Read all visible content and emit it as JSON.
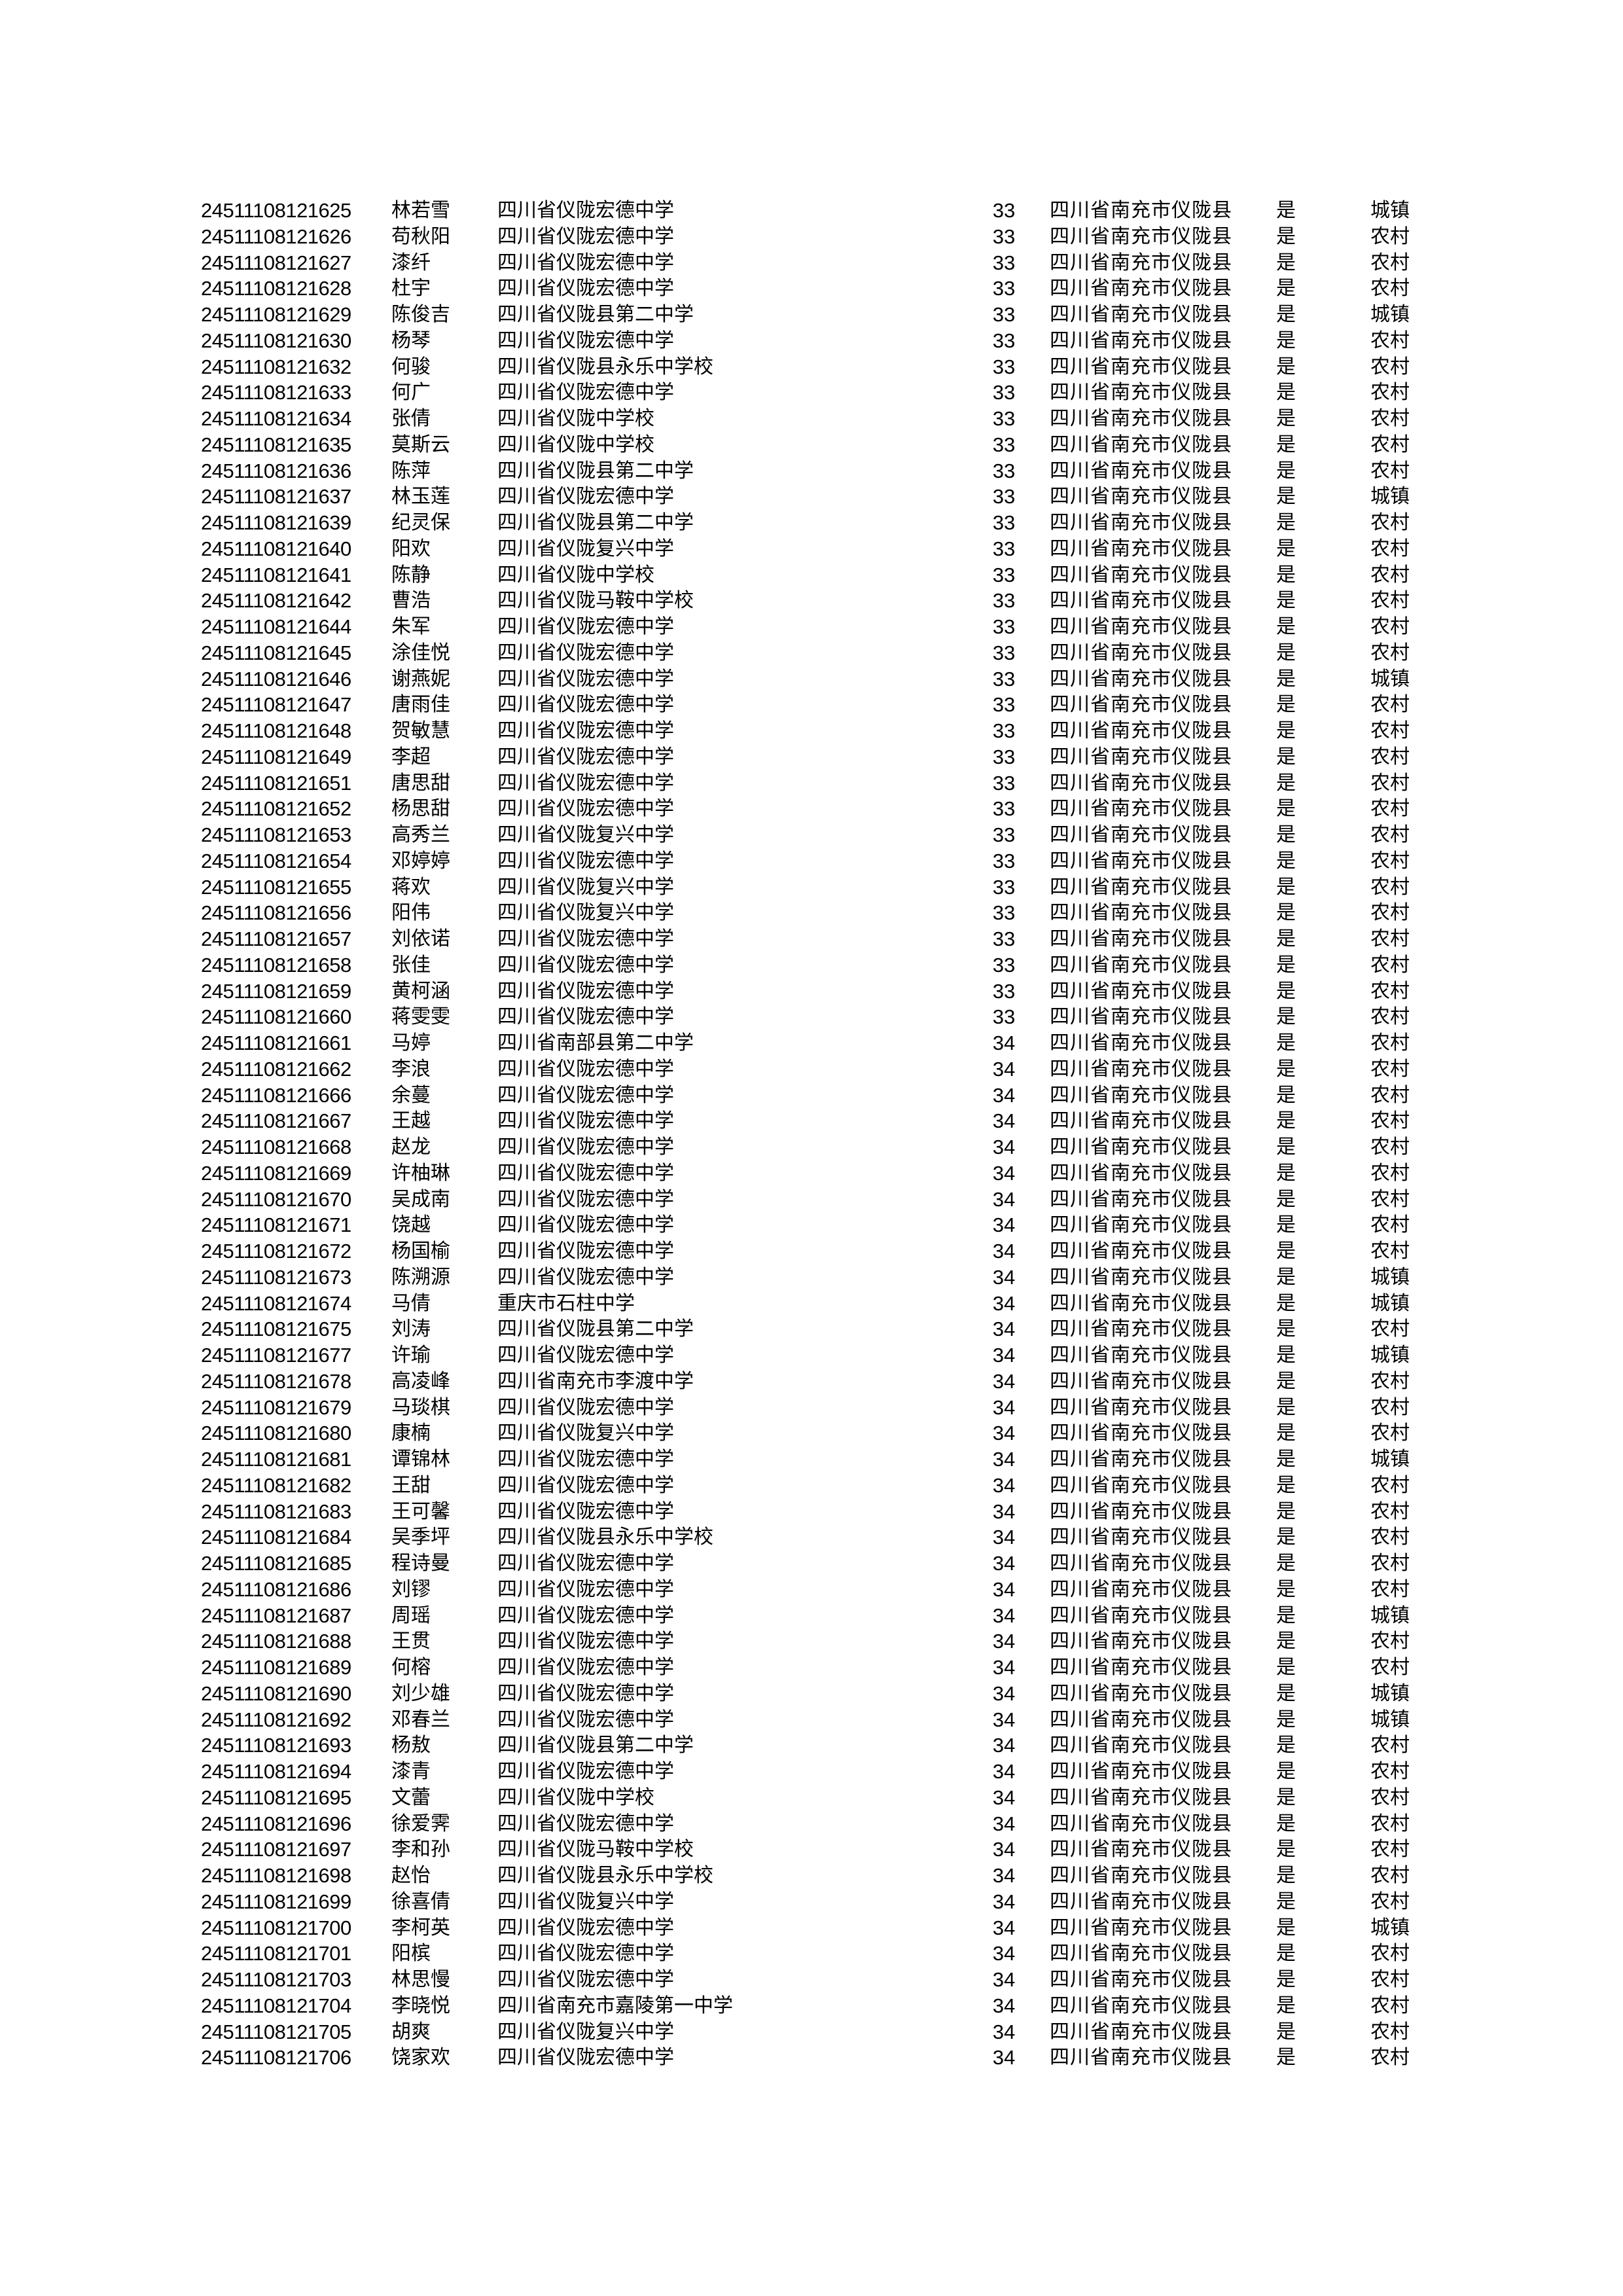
{
  "rows": [
    [
      "24511108121625",
      "林若雪",
      "四川省仪陇宏德中学",
      "33",
      "四川省南充市仪陇县",
      "是",
      "城镇"
    ],
    [
      "24511108121626",
      "苟秋阳",
      "四川省仪陇宏德中学",
      "33",
      "四川省南充市仪陇县",
      "是",
      "农村"
    ],
    [
      "24511108121627",
      "漆纤",
      "四川省仪陇宏德中学",
      "33",
      "四川省南充市仪陇县",
      "是",
      "农村"
    ],
    [
      "24511108121628",
      "杜宇",
      "四川省仪陇宏德中学",
      "33",
      "四川省南充市仪陇县",
      "是",
      "农村"
    ],
    [
      "24511108121629",
      "陈俊吉",
      "四川省仪陇县第二中学",
      "33",
      "四川省南充市仪陇县",
      "是",
      "城镇"
    ],
    [
      "24511108121630",
      "杨琴",
      "四川省仪陇宏德中学",
      "33",
      "四川省南充市仪陇县",
      "是",
      "农村"
    ],
    [
      "24511108121632",
      "何骏",
      "四川省仪陇县永乐中学校",
      "33",
      "四川省南充市仪陇县",
      "是",
      "农村"
    ],
    [
      "24511108121633",
      "何广",
      "四川省仪陇宏德中学",
      "33",
      "四川省南充市仪陇县",
      "是",
      "农村"
    ],
    [
      "24511108121634",
      "张倩",
      "四川省仪陇中学校",
      "33",
      "四川省南充市仪陇县",
      "是",
      "农村"
    ],
    [
      "24511108121635",
      "莫斯云",
      "四川省仪陇中学校",
      "33",
      "四川省南充市仪陇县",
      "是",
      "农村"
    ],
    [
      "24511108121636",
      "陈萍",
      "四川省仪陇县第二中学",
      "33",
      "四川省南充市仪陇县",
      "是",
      "农村"
    ],
    [
      "24511108121637",
      "林玉莲",
      "四川省仪陇宏德中学",
      "33",
      "四川省南充市仪陇县",
      "是",
      "城镇"
    ],
    [
      "24511108121639",
      "纪灵保",
      "四川省仪陇县第二中学",
      "33",
      "四川省南充市仪陇县",
      "是",
      "农村"
    ],
    [
      "24511108121640",
      "阳欢",
      "四川省仪陇复兴中学",
      "33",
      "四川省南充市仪陇县",
      "是",
      "农村"
    ],
    [
      "24511108121641",
      "陈静",
      "四川省仪陇中学校",
      "33",
      "四川省南充市仪陇县",
      "是",
      "农村"
    ],
    [
      "24511108121642",
      "曹浩",
      "四川省仪陇马鞍中学校",
      "33",
      "四川省南充市仪陇县",
      "是",
      "农村"
    ],
    [
      "24511108121644",
      "朱军",
      "四川省仪陇宏德中学",
      "33",
      "四川省南充市仪陇县",
      "是",
      "农村"
    ],
    [
      "24511108121645",
      "涂佳悦",
      "四川省仪陇宏德中学",
      "33",
      "四川省南充市仪陇县",
      "是",
      "农村"
    ],
    [
      "24511108121646",
      "谢燕妮",
      "四川省仪陇宏德中学",
      "33",
      "四川省南充市仪陇县",
      "是",
      "城镇"
    ],
    [
      "24511108121647",
      "唐雨佳",
      "四川省仪陇宏德中学",
      "33",
      "四川省南充市仪陇县",
      "是",
      "农村"
    ],
    [
      "24511108121648",
      "贺敏慧",
      "四川省仪陇宏德中学",
      "33",
      "四川省南充市仪陇县",
      "是",
      "农村"
    ],
    [
      "24511108121649",
      "李超",
      "四川省仪陇宏德中学",
      "33",
      "四川省南充市仪陇县",
      "是",
      "农村"
    ],
    [
      "24511108121651",
      "唐思甜",
      "四川省仪陇宏德中学",
      "33",
      "四川省南充市仪陇县",
      "是",
      "农村"
    ],
    [
      "24511108121652",
      "杨思甜",
      "四川省仪陇宏德中学",
      "33",
      "四川省南充市仪陇县",
      "是",
      "农村"
    ],
    [
      "24511108121653",
      "高秀兰",
      "四川省仪陇复兴中学",
      "33",
      "四川省南充市仪陇县",
      "是",
      "农村"
    ],
    [
      "24511108121654",
      "邓婷婷",
      "四川省仪陇宏德中学",
      "33",
      "四川省南充市仪陇县",
      "是",
      "农村"
    ],
    [
      "24511108121655",
      "蒋欢",
      "四川省仪陇复兴中学",
      "33",
      "四川省南充市仪陇县",
      "是",
      "农村"
    ],
    [
      "24511108121656",
      "阳伟",
      "四川省仪陇复兴中学",
      "33",
      "四川省南充市仪陇县",
      "是",
      "农村"
    ],
    [
      "24511108121657",
      "刘依诺",
      "四川省仪陇宏德中学",
      "33",
      "四川省南充市仪陇县",
      "是",
      "农村"
    ],
    [
      "24511108121658",
      "张佳",
      "四川省仪陇宏德中学",
      "33",
      "四川省南充市仪陇县",
      "是",
      "农村"
    ],
    [
      "24511108121659",
      "黄柯涵",
      "四川省仪陇宏德中学",
      "33",
      "四川省南充市仪陇县",
      "是",
      "农村"
    ],
    [
      "24511108121660",
      "蒋雯雯",
      "四川省仪陇宏德中学",
      "33",
      "四川省南充市仪陇县",
      "是",
      "农村"
    ],
    [
      "24511108121661",
      "马婷",
      "四川省南部县第二中学",
      "34",
      "四川省南充市仪陇县",
      "是",
      "农村"
    ],
    [
      "24511108121662",
      "李浪",
      "四川省仪陇宏德中学",
      "34",
      "四川省南充市仪陇县",
      "是",
      "农村"
    ],
    [
      "24511108121666",
      "余蔓",
      "四川省仪陇宏德中学",
      "34",
      "四川省南充市仪陇县",
      "是",
      "农村"
    ],
    [
      "24511108121667",
      "王越",
      "四川省仪陇宏德中学",
      "34",
      "四川省南充市仪陇县",
      "是",
      "农村"
    ],
    [
      "24511108121668",
      "赵龙",
      "四川省仪陇宏德中学",
      "34",
      "四川省南充市仪陇县",
      "是",
      "农村"
    ],
    [
      "24511108121669",
      "许柚琳",
      "四川省仪陇宏德中学",
      "34",
      "四川省南充市仪陇县",
      "是",
      "农村"
    ],
    [
      "24511108121670",
      "吴成南",
      "四川省仪陇宏德中学",
      "34",
      "四川省南充市仪陇县",
      "是",
      "农村"
    ],
    [
      "24511108121671",
      "饶越",
      "四川省仪陇宏德中学",
      "34",
      "四川省南充市仪陇县",
      "是",
      "农村"
    ],
    [
      "24511108121672",
      "杨国榆",
      "四川省仪陇宏德中学",
      "34",
      "四川省南充市仪陇县",
      "是",
      "农村"
    ],
    [
      "24511108121673",
      "陈溯源",
      "四川省仪陇宏德中学",
      "34",
      "四川省南充市仪陇县",
      "是",
      "城镇"
    ],
    [
      "24511108121674",
      "马倩",
      "重庆市石柱中学",
      "34",
      "四川省南充市仪陇县",
      "是",
      "城镇"
    ],
    [
      "24511108121675",
      "刘涛",
      "四川省仪陇县第二中学",
      "34",
      "四川省南充市仪陇县",
      "是",
      "农村"
    ],
    [
      "24511108121677",
      "许瑜",
      "四川省仪陇宏德中学",
      "34",
      "四川省南充市仪陇县",
      "是",
      "城镇"
    ],
    [
      "24511108121678",
      "高凌峰",
      "四川省南充市李渡中学",
      "34",
      "四川省南充市仪陇县",
      "是",
      "农村"
    ],
    [
      "24511108121679",
      "马琰棋",
      "四川省仪陇宏德中学",
      "34",
      "四川省南充市仪陇县",
      "是",
      "农村"
    ],
    [
      "24511108121680",
      "康楠",
      "四川省仪陇复兴中学",
      "34",
      "四川省南充市仪陇县",
      "是",
      "农村"
    ],
    [
      "24511108121681",
      "谭锦林",
      "四川省仪陇宏德中学",
      "34",
      "四川省南充市仪陇县",
      "是",
      "城镇"
    ],
    [
      "24511108121682",
      "王甜",
      "四川省仪陇宏德中学",
      "34",
      "四川省南充市仪陇县",
      "是",
      "农村"
    ],
    [
      "24511108121683",
      "王可馨",
      "四川省仪陇宏德中学",
      "34",
      "四川省南充市仪陇县",
      "是",
      "农村"
    ],
    [
      "24511108121684",
      "吴季坪",
      "四川省仪陇县永乐中学校",
      "34",
      "四川省南充市仪陇县",
      "是",
      "农村"
    ],
    [
      "24511108121685",
      "程诗曼",
      "四川省仪陇宏德中学",
      "34",
      "四川省南充市仪陇县",
      "是",
      "农村"
    ],
    [
      "24511108121686",
      "刘镠",
      "四川省仪陇宏德中学",
      "34",
      "四川省南充市仪陇县",
      "是",
      "农村"
    ],
    [
      "24511108121687",
      "周瑶",
      "四川省仪陇宏德中学",
      "34",
      "四川省南充市仪陇县",
      "是",
      "城镇"
    ],
    [
      "24511108121688",
      "王贯",
      "四川省仪陇宏德中学",
      "34",
      "四川省南充市仪陇县",
      "是",
      "农村"
    ],
    [
      "24511108121689",
      "何榕",
      "四川省仪陇宏德中学",
      "34",
      "四川省南充市仪陇县",
      "是",
      "农村"
    ],
    [
      "24511108121690",
      "刘少雄",
      "四川省仪陇宏德中学",
      "34",
      "四川省南充市仪陇县",
      "是",
      "城镇"
    ],
    [
      "24511108121692",
      "邓春兰",
      "四川省仪陇宏德中学",
      "34",
      "四川省南充市仪陇县",
      "是",
      "城镇"
    ],
    [
      "24511108121693",
      "杨敖",
      "四川省仪陇县第二中学",
      "34",
      "四川省南充市仪陇县",
      "是",
      "农村"
    ],
    [
      "24511108121694",
      "漆青",
      "四川省仪陇宏德中学",
      "34",
      "四川省南充市仪陇县",
      "是",
      "农村"
    ],
    [
      "24511108121695",
      "文蕾",
      "四川省仪陇中学校",
      "34",
      "四川省南充市仪陇县",
      "是",
      "农村"
    ],
    [
      "24511108121696",
      "徐爱霁",
      "四川省仪陇宏德中学",
      "34",
      "四川省南充市仪陇县",
      "是",
      "农村"
    ],
    [
      "24511108121697",
      "李和孙",
      "四川省仪陇马鞍中学校",
      "34",
      "四川省南充市仪陇县",
      "是",
      "农村"
    ],
    [
      "24511108121698",
      "赵怡",
      "四川省仪陇县永乐中学校",
      "34",
      "四川省南充市仪陇县",
      "是",
      "农村"
    ],
    [
      "24511108121699",
      "徐喜倩",
      "四川省仪陇复兴中学",
      "34",
      "四川省南充市仪陇县",
      "是",
      "农村"
    ],
    [
      "24511108121700",
      "李柯英",
      "四川省仪陇宏德中学",
      "34",
      "四川省南充市仪陇县",
      "是",
      "城镇"
    ],
    [
      "24511108121701",
      "阳槟",
      "四川省仪陇宏德中学",
      "34",
      "四川省南充市仪陇县",
      "是",
      "农村"
    ],
    [
      "24511108121703",
      "林思慢",
      "四川省仪陇宏德中学",
      "34",
      "四川省南充市仪陇县",
      "是",
      "农村"
    ],
    [
      "24511108121704",
      "李晓悦",
      "四川省南充市嘉陵第一中学",
      "34",
      "四川省南充市仪陇县",
      "是",
      "农村"
    ],
    [
      "24511108121705",
      "胡爽",
      "四川省仪陇复兴中学",
      "34",
      "四川省南充市仪陇县",
      "是",
      "农村"
    ],
    [
      "24511108121706",
      "饶家欢",
      "四川省仪陇宏德中学",
      "34",
      "四川省南充市仪陇县",
      "是",
      "农村"
    ]
  ]
}
